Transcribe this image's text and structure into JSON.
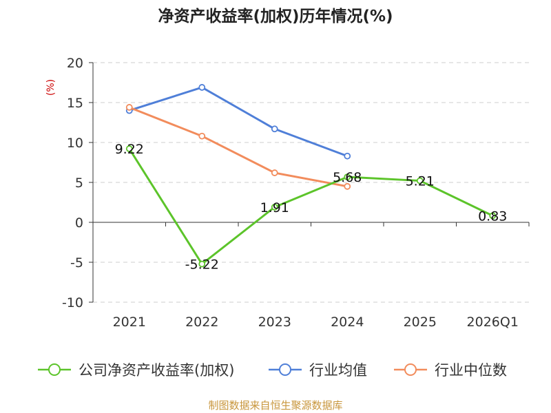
{
  "chart_data": {
    "type": "line",
    "title": "净资产收益率(加权)历年情况(%)",
    "ylabel": "(%)",
    "xlabel": "",
    "categories": [
      "2021",
      "2022",
      "2023",
      "2024",
      "2025",
      "2026Q1"
    ],
    "ylim": [
      -10,
      20
    ],
    "yticks": [
      -10,
      -5,
      0,
      5,
      10,
      15,
      20
    ],
    "grid": true,
    "legend_position": "bottom",
    "series": [
      {
        "name": "公司净资产收益率(加权)",
        "color": "#5cc42a",
        "values": [
          9.22,
          -5.22,
          1.91,
          5.68,
          5.21,
          0.83
        ],
        "labels": [
          "9.22",
          "-5.22",
          "1.91",
          "5.68",
          "5.21",
          "0.83"
        ]
      },
      {
        "name": "行业均值",
        "color": "#4f7fd8",
        "values": [
          14.0,
          16.9,
          11.7,
          8.3,
          null,
          null
        ]
      },
      {
        "name": "行业中位数",
        "color": "#f28c5c",
        "values": [
          14.4,
          10.8,
          6.2,
          4.5,
          null,
          null
        ]
      }
    ]
  },
  "source": "制图数据来自恒生聚源数据库"
}
